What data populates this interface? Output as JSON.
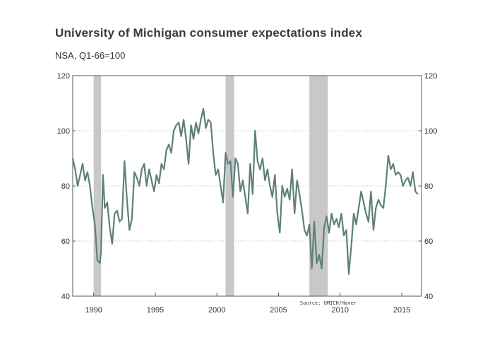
{
  "title": "University of Michigan consumer expectations index",
  "subtitle": "NSA, Q1-66=100",
  "source": "Source: UMICH/Haver",
  "colors": {
    "line": "#5f7f7b",
    "recession": "#c8c8c8",
    "grid": "#bfbfbf",
    "axis": "#555555"
  },
  "chart_data": {
    "type": "line",
    "title": "University of Michigan consumer expectations index",
    "subtitle": "NSA, Q1-66=100",
    "source": "Source: UMICH/Haver",
    "xlim": [
      1988.3,
      2016.6
    ],
    "ylim": [
      40,
      120
    ],
    "x_ticks": [
      1990,
      1995,
      2000,
      2005,
      2010,
      2015
    ],
    "x_tick_labels": [
      "1990",
      "1995",
      "2000",
      "2005",
      "2010",
      "2015"
    ],
    "y_ticks": [
      40,
      60,
      80,
      100,
      120
    ],
    "y_tick_labels": [
      "40",
      "60",
      "80",
      "100",
      "120"
    ],
    "grid": "horizontal dotted",
    "recessions": [
      [
        1990.0,
        1990.6
      ],
      [
        2000.7,
        2001.4
      ],
      [
        2007.5,
        2009.0
      ]
    ],
    "series": [
      {
        "x": [
          1988.3,
          1988.5,
          1988.7,
          1988.9,
          1989.1,
          1989.3,
          1989.5,
          1989.7,
          1989.9,
          1990.1,
          1990.3,
          1990.5,
          1990.6,
          1990.75,
          1990.9,
          1991.1,
          1991.3,
          1991.5,
          1991.7,
          1991.9,
          1992.1,
          1992.3,
          1992.5,
          1992.7,
          1992.9,
          1993.1,
          1993.3,
          1993.5,
          1993.7,
          1993.9,
          1994.1,
          1994.3,
          1994.5,
          1994.7,
          1994.9,
          1995.1,
          1995.3,
          1995.5,
          1995.7,
          1995.9,
          1996.1,
          1996.3,
          1996.5,
          1996.7,
          1996.9,
          1997.1,
          1997.3,
          1997.5,
          1997.7,
          1997.9,
          1998.1,
          1998.3,
          1998.5,
          1998.7,
          1998.9,
          1999.1,
          1999.3,
          1999.5,
          1999.7,
          1999.9,
          2000.1,
          2000.3,
          2000.5,
          2000.7,
          2000.9,
          2001.1,
          2001.3,
          2001.5,
          2001.7,
          2001.9,
          2002.1,
          2002.3,
          2002.5,
          2002.7,
          2002.9,
          2003.1,
          2003.3,
          2003.5,
          2003.7,
          2003.9,
          2004.1,
          2004.3,
          2004.5,
          2004.7,
          2004.9,
          2005.1,
          2005.3,
          2005.5,
          2005.7,
          2005.9,
          2006.1,
          2006.3,
          2006.5,
          2006.7,
          2006.9,
          2007.1,
          2007.3,
          2007.5,
          2007.7,
          2007.9,
          2008.1,
          2008.3,
          2008.5,
          2008.7,
          2008.9,
          2009.1,
          2009.3,
          2009.5,
          2009.7,
          2009.9,
          2010.1,
          2010.3,
          2010.5,
          2010.7,
          2010.9,
          2011.1,
          2011.3,
          2011.5,
          2011.7,
          2011.9,
          2012.1,
          2012.3,
          2012.5,
          2012.7,
          2012.9,
          2013.1,
          2013.3,
          2013.5,
          2013.7,
          2013.9,
          2014.1,
          2014.3,
          2014.5,
          2014.7,
          2014.9,
          2015.1,
          2015.3,
          2015.5,
          2015.7,
          2015.9,
          2016.1,
          2016.3
        ],
        "y": [
          90,
          86,
          80,
          84,
          88,
          82,
          85,
          80,
          72,
          66,
          53,
          52,
          56,
          84,
          72,
          74,
          65,
          59,
          70,
          71,
          67,
          68,
          89,
          75,
          64,
          68,
          85,
          83,
          80,
          86,
          88,
          80,
          86,
          82,
          78,
          84,
          81,
          88,
          86,
          93,
          95,
          92,
          100,
          102,
          103,
          98,
          104,
          97,
          88,
          102,
          97,
          103,
          99,
          104,
          108,
          101,
          104,
          103,
          92,
          84,
          86,
          80,
          74,
          92,
          88,
          89,
          76,
          90,
          88,
          78,
          82,
          76,
          70,
          88,
          77,
          100,
          89,
          86,
          90,
          82,
          86,
          80,
          76,
          84,
          70,
          63,
          80,
          76,
          79,
          75,
          86,
          70,
          82,
          77,
          71,
          64,
          62,
          66,
          50,
          67,
          52,
          55,
          50,
          65,
          69,
          63,
          70,
          66,
          68,
          65,
          70,
          62,
          64,
          48,
          58,
          70,
          66,
          72,
          78,
          74,
          70,
          67,
          78,
          64,
          72,
          75,
          73,
          72,
          80,
          91,
          86,
          88,
          84,
          85,
          84,
          80,
          82,
          83,
          80,
          85,
          78,
          77
        ]
      }
    ]
  }
}
